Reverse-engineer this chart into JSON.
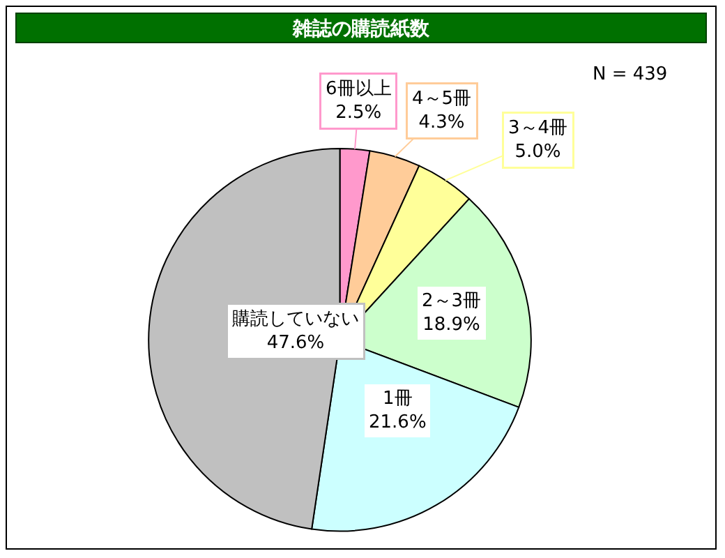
{
  "chart_data": {
    "type": "pie",
    "title": "雑誌の購読紙数",
    "categories": [
      "6冊以上",
      "4～5冊",
      "3～4冊",
      "2～3冊",
      "1冊",
      "購読していない"
    ],
    "values": [
      2.5,
      4.3,
      5.0,
      18.9,
      21.6,
      47.6
    ],
    "value_labels": [
      "2.5%",
      "4.3%",
      "5.0%",
      "18.9%",
      "21.6%",
      "47.6%"
    ],
    "colors": [
      "#ff99cc",
      "#ffcc99",
      "#ffff99",
      "#ccffcc",
      "#ccffff",
      "#c0c0c0"
    ],
    "annotations": [
      "N = 439"
    ]
  }
}
